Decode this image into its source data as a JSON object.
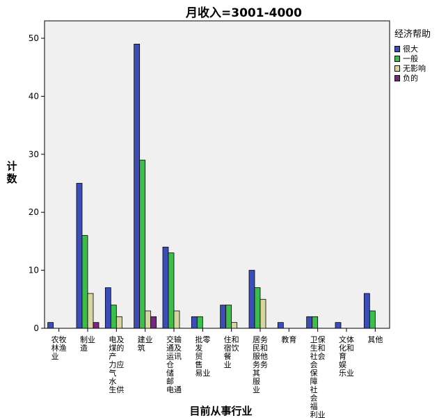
{
  "chart_data": {
    "type": "bar",
    "title": "月收入=3001-4000",
    "xlabel": "目前从事行业",
    "ylabel": "计数",
    "ylim": [
      0,
      53
    ],
    "yticks": [
      0,
      10,
      20,
      30,
      40,
      50
    ],
    "categories": [
      "农林牧渔业",
      "制造业",
      "电煤及的产力气水生供应业",
      "建筑业",
      "交通运输、仓储及邮电通讯业",
      "批发零售贸易业",
      "住宿和餐饮业",
      "居民服务和其他服务业",
      "教育",
      "卫生、社会保障和社会福利业",
      "文化、体育和娱乐业",
      "其他"
    ],
    "category_label_columns": [
      [
        "农牧",
        "林渔",
        "业"
      ],
      [
        "制业",
        "造"
      ],
      [
        "电及",
        "煤的",
        "产",
        "力应",
        "气",
        "水",
        "生供"
      ],
      [
        "建业",
        "筑"
      ],
      [
        "交输",
        "通及",
        "运讯",
        "仓",
        "储",
        "邮",
        "电通"
      ],
      [
        "批零",
        "发",
        "贸",
        "售",
        "易业"
      ],
      [
        "住和",
        "宿饮",
        "餐",
        "业"
      ],
      [
        "居务",
        "民和",
        "服他",
        "务务",
        "其",
        "服",
        "业"
      ],
      [
        "教育"
      ],
      [
        "卫保",
        "生和",
        "社会",
        "会",
        "保",
        "障",
        "社",
        "会",
        "福",
        "利业"
      ],
      [
        "文体",
        "化和",
        "育",
        "娱",
        "乐业"
      ],
      [
        "其他"
      ]
    ],
    "series": [
      {
        "name": "很大",
        "color": "#3d4db7",
        "values": [
          1,
          25,
          7,
          49,
          14,
          2,
          4,
          10,
          1,
          2,
          1,
          6
        ]
      },
      {
        "name": "一般",
        "color": "#3dbd4a",
        "values": [
          0,
          16,
          4,
          29,
          13,
          2,
          4,
          7,
          0,
          2,
          0,
          3
        ]
      },
      {
        "name": "无影响",
        "color": "#d8d6a0",
        "values": [
          0,
          6,
          2,
          3,
          3,
          0,
          1,
          5,
          0,
          0,
          0,
          0
        ]
      },
      {
        "name": "负的",
        "color": "#7c2482",
        "values": [
          0,
          1,
          0,
          2,
          0,
          0,
          0,
          0,
          0,
          0,
          0,
          0
        ]
      }
    ],
    "legend_title": "经济帮助",
    "legend_position": "right",
    "grid": false,
    "background": "#f0f0f0"
  }
}
